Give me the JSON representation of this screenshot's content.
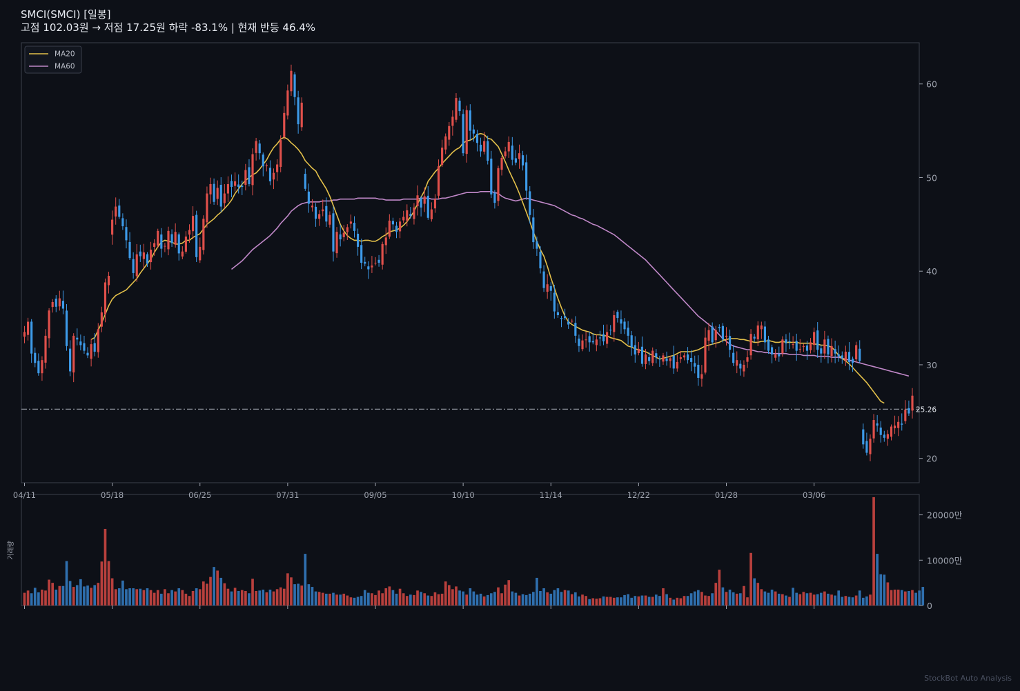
{
  "header": {
    "title": "SMCI(SMCI)  [일봉]",
    "subtitle": "고점 102.03원 → 저점 17.25원  하락 -83.1%  |  현재 반등 46.4%"
  },
  "footer": {
    "watermark": "StockBot Auto Analysis"
  },
  "colors": {
    "background": "#0d1017",
    "up": "#e0504b",
    "down": "#3d9ae8",
    "volume_up": "#b8403d",
    "volume_down": "#2f6fae",
    "ma20": "#e3c04a",
    "ma60": "#c088c8",
    "frame": "#3a3f4b",
    "reference_line": "#9a9ea8",
    "tick_text": "#9ea3ae"
  },
  "chart_data": [
    {
      "type": "candlestick",
      "panel": "price",
      "legend_position": "top-left",
      "legend": [
        "MA20",
        "MA60"
      ],
      "y_ticks": [
        20,
        30,
        40,
        50,
        60
      ],
      "ylim": [
        17.4,
        64.4
      ],
      "x_ticks": [
        "04/11",
        "05/18",
        "06/25",
        "07/31",
        "09/05",
        "10/10",
        "11/14",
        "12/22",
        "01/28",
        "03/06"
      ],
      "x_tick_index": [
        0,
        25,
        50,
        75,
        100,
        125,
        150,
        175,
        200,
        225
      ],
      "reference_line": {
        "value": 25.26,
        "label": "25.26"
      },
      "closes": [
        33.5,
        34.6,
        31.2,
        30.2,
        29.1,
        30.5,
        33.1,
        35.8,
        36.7,
        36.2,
        37.1,
        36.0,
        32.0,
        29.3,
        33.1,
        32.7,
        32.1,
        31.5,
        31.0,
        32.2,
        31.4,
        33.8,
        35.6,
        38.8,
        39.5,
        45.5,
        46.9,
        45.8,
        44.8,
        43.3,
        41.4,
        39.8,
        41.8,
        41.6,
        42.0,
        40.8,
        42.3,
        43.0,
        44.3,
        42.4,
        42.7,
        44.3,
        43.0,
        44.2,
        41.9,
        42.1,
        43.7,
        44.4,
        45.9,
        41.5,
        42.6,
        45.6,
        48.3,
        49.3,
        47.4,
        48.9,
        46.9,
        48.3,
        49.3,
        49.0,
        49.6,
        49.0,
        49.0,
        50.8,
        49.3,
        52.5,
        53.9,
        52.6,
        51.2,
        51.3,
        49.6,
        50.5,
        51.4,
        54.0,
        56.9,
        59.3,
        61.4,
        58.6,
        55.7,
        58.0,
        48.8,
        47.2,
        47.0,
        45.6,
        46.1,
        46.6,
        45.3,
        46.0,
        42.1,
        44.2,
        43.4,
        44.1,
        44.7,
        45.3,
        44.3,
        42.6,
        40.9,
        40.8,
        40.2,
        40.6,
        40.9,
        40.9,
        42.9,
        43.6,
        45.4,
        45.0,
        44.2,
        45.3,
        45.8,
        46.5,
        45.9,
        46.8,
        48.1,
        46.8,
        48.0,
        45.7,
        46.6,
        47.7,
        51.2,
        53.2,
        54.4,
        55.5,
        56.5,
        58.5,
        57.1,
        52.6,
        57.2,
        55.0,
        54.7,
        53.7,
        52.8,
        53.9,
        51.8,
        48.2,
        47.3,
        51.0,
        52.1,
        52.8,
        53.8,
        51.9,
        51.6,
        52.6,
        51.3,
        48.6,
        46.0,
        43.1,
        42.4,
        40.3,
        38.2,
        38.6,
        37.9,
        35.7,
        35.3,
        34.9,
        35.0,
        34.3,
        34.7,
        33.1,
        32.0,
        32.6,
        32.7,
        32.4,
        32.4,
        32.7,
        32.9,
        32.5,
        33.5,
        33.7,
        35.3,
        35.0,
        34.4,
        33.8,
        33.1,
        31.9,
        31.1,
        31.7,
        30.1,
        31.1,
        30.4,
        31.5,
        30.8,
        30.6,
        31.0,
        30.4,
        30.7,
        29.6,
        30.3,
        30.8,
        31.0,
        30.5,
        30.3,
        29.8,
        28.6,
        29.0,
        32.9,
        33.7,
        32.4,
        33.7,
        33.9,
        32.7,
        33.1,
        31.6,
        30.2,
        30.5,
        29.6,
        30.0,
        30.8,
        33.3,
        32.8,
        34.2,
        34.2,
        32.4,
        31.5,
        31.1,
        31.1,
        30.9,
        32.7,
        32.3,
        32.5,
        32.2,
        31.5,
        31.7,
        32.0,
        31.5,
        32.4,
        33.5,
        31.6,
        31.2,
        32.7,
        31.1,
        32.0,
        31.2,
        30.9,
        30.7,
        31.4,
        30.3,
        30.2,
        32.1,
        30.4,
        21.5,
        20.6,
        22.1,
        24.1,
        23.5,
        22.5,
        22.2,
        22.6,
        23.4,
        23.5,
        23.9,
        23.6,
        25.2,
        24.8,
        26.7
      ],
      "ma20": [
        null,
        null,
        null,
        null,
        null,
        null,
        null,
        null,
        null,
        null,
        null,
        null,
        null,
        null,
        null,
        null,
        null,
        null,
        null,
        32.7,
        32.9,
        33.7,
        34.5,
        35.4,
        36.3,
        37.0,
        37.4,
        37.6,
        37.8,
        38.0,
        38.4,
        38.8,
        39.2,
        39.8,
        40.3,
        40.8,
        41.3,
        42.0,
        42.6,
        43.1,
        43.3,
        43.2,
        43.1,
        42.9,
        42.9,
        43.0,
        43.3,
        43.3,
        43.6,
        43.8,
        44.0,
        44.5,
        45.0,
        45.3,
        45.6,
        46.0,
        46.3,
        46.7,
        47.1,
        47.6,
        48.3,
        48.8,
        49.3,
        49.7,
        50.0,
        50.3,
        50.5,
        50.9,
        51.4,
        51.9,
        52.6,
        53.2,
        53.6,
        54.1,
        54.3,
        54.1,
        53.7,
        53.4,
        53.0,
        52.5,
        51.8,
        51.4,
        51.0,
        50.7,
        50.0,
        49.4,
        48.8,
        48.0,
        47.0,
        46.0,
        45.0,
        44.3,
        43.8,
        43.5,
        43.3,
        43.3,
        43.2,
        43.3,
        43.3,
        43.2,
        43.2,
        43.4,
        43.7,
        43.9,
        44.2,
        44.3,
        44.4,
        44.6,
        44.9,
        45.3,
        45.8,
        46.4,
        47.2,
        47.9,
        48.6,
        49.6,
        50.1,
        50.6,
        51.0,
        51.5,
        51.9,
        52.3,
        52.7,
        53.0,
        53.2,
        53.7,
        53.9,
        54.0,
        54.2,
        54.6,
        54.7,
        54.6,
        54.2,
        54.1,
        53.7,
        53.3,
        52.5,
        51.7,
        50.8,
        50.0,
        49.2,
        48.3,
        47.3,
        46.3,
        45.3,
        44.2,
        43.2,
        42.3,
        41.6,
        40.5,
        39.3,
        38.2,
        37.1,
        36.1,
        35.2,
        34.6,
        34.3,
        34.1,
        33.9,
        33.7,
        33.6,
        33.5,
        33.3,
        33.2,
        33.2,
        33.1,
        33.1,
        32.9,
        32.8,
        32.7,
        32.6,
        32.3,
        32.0,
        31.9,
        31.7,
        31.6,
        31.5,
        31.4,
        31.2,
        31.0,
        30.8,
        30.6,
        30.7,
        30.8,
        30.9,
        31.0,
        31.2,
        31.4,
        31.4,
        31.4,
        31.4,
        31.5,
        31.6,
        31.8,
        32.0,
        32.1,
        32.2,
        32.3,
        32.4,
        32.6,
        32.7,
        32.8,
        32.8,
        32.8,
        32.7,
        32.7,
        32.6,
        32.5,
        32.4,
        32.4,
        32.5,
        32.5,
        32.6,
        32.5,
        32.4,
        32.4,
        32.5,
        32.4,
        32.4,
        32.4,
        32.4,
        32.3,
        32.3,
        32.3,
        32.3,
        32.2,
        32.2,
        32.1,
        32.1,
        32.0,
        31.9,
        31.5,
        31.0,
        30.7,
        30.4,
        30.1,
        29.7,
        29.3,
        28.9,
        28.5,
        28.1,
        27.6,
        27.1,
        26.6,
        26.1,
        25.9
      ],
      "ma60": [
        null,
        null,
        null,
        null,
        null,
        null,
        null,
        null,
        null,
        null,
        null,
        null,
        null,
        null,
        null,
        null,
        null,
        null,
        null,
        null,
        null,
        null,
        null,
        null,
        null,
        null,
        null,
        null,
        null,
        null,
        null,
        null,
        null,
        null,
        null,
        null,
        null,
        null,
        null,
        null,
        null,
        null,
        null,
        null,
        null,
        null,
        null,
        null,
        null,
        null,
        null,
        null,
        null,
        null,
        null,
        null,
        null,
        null,
        null,
        40.2,
        40.5,
        40.8,
        41.1,
        41.5,
        41.9,
        42.3,
        42.6,
        42.9,
        43.2,
        43.5,
        43.8,
        44.2,
        44.6,
        45.1,
        45.5,
        45.9,
        46.4,
        46.7,
        47.0,
        47.2,
        47.3,
        47.4,
        47.4,
        47.4,
        47.4,
        47.5,
        47.5,
        47.5,
        47.6,
        47.6,
        47.7,
        47.7,
        47.7,
        47.7,
        47.7,
        47.8,
        47.8,
        47.8,
        47.8,
        47.8,
        47.8,
        47.7,
        47.7,
        47.6,
        47.6,
        47.6,
        47.6,
        47.6,
        47.7,
        47.7,
        47.7,
        47.7,
        47.7,
        47.8,
        47.8,
        47.8,
        47.7,
        47.7,
        47.7,
        47.8,
        47.8,
        47.9,
        48.0,
        48.1,
        48.2,
        48.3,
        48.4,
        48.4,
        48.4,
        48.4,
        48.5,
        48.5,
        48.5,
        48.5,
        48.4,
        48.3,
        48.0,
        47.8,
        47.7,
        47.6,
        47.5,
        47.6,
        47.7,
        47.8,
        47.7,
        47.6,
        47.5,
        47.4,
        47.3,
        47.2,
        47.1,
        47.0,
        46.8,
        46.6,
        46.4,
        46.2,
        46.0,
        45.9,
        45.7,
        45.6,
        45.4,
        45.2,
        45.0,
        44.9,
        44.7,
        44.5,
        44.3,
        44.1,
        43.9,
        43.6,
        43.3,
        43.0,
        42.7,
        42.4,
        42.1,
        41.8,
        41.5,
        41.2,
        40.8,
        40.4,
        40.0,
        39.6,
        39.2,
        38.8,
        38.4,
        38.0,
        37.6,
        37.2,
        36.8,
        36.4,
        36.0,
        35.6,
        35.2,
        34.9,
        34.6,
        34.3,
        34.0,
        33.6,
        33.2,
        32.8,
        32.5,
        32.2,
        32.0,
        31.9,
        31.8,
        31.7,
        31.6,
        31.6,
        31.5,
        31.4,
        31.4,
        31.3,
        31.3,
        31.2,
        31.2,
        31.2,
        31.2,
        31.2,
        31.1,
        31.1,
        31.1,
        31.1,
        31.0,
        31.0,
        31.0,
        31.0,
        30.9,
        30.9,
        30.9,
        30.9,
        30.8,
        30.8,
        30.8,
        30.7,
        30.6,
        30.5,
        30.4,
        30.3,
        30.2,
        30.1,
        30.0,
        29.9,
        29.8,
        29.7,
        29.6,
        29.5,
        29.4,
        29.3,
        29.2,
        29.1,
        29.0,
        28.9,
        28.8
      ]
    },
    {
      "type": "bar",
      "panel": "volume",
      "ylabel": "거래량",
      "y_ticks": [
        0,
        10000,
        20000
      ],
      "y_tick_labels": [
        "0",
        "10000만",
        "20000만"
      ],
      "ylim": [
        0,
        24500
      ],
      "unit": "만",
      "volumes": [
        2800,
        3300,
        2700,
        3900,
        2900,
        3500,
        3300,
        5700,
        5000,
        3500,
        4300,
        4300,
        9800,
        5400,
        4100,
        4500,
        5800,
        4200,
        4400,
        3900,
        4500,
        5000,
        9700,
        16900,
        9800,
        6000,
        3600,
        3800,
        5500,
        3600,
        3800,
        3800,
        3600,
        3700,
        3400,
        3800,
        3400,
        2800,
        3400,
        2600,
        3600,
        2700,
        3400,
        3100,
        3800,
        3400,
        2600,
        2100,
        3200,
        3800,
        3600,
        5300,
        4800,
        6300,
        8500,
        7700,
        6100,
        4900,
        3700,
        3100,
        3900,
        3200,
        3400,
        3200,
        2700,
        5900,
        3200,
        3300,
        3500,
        2900,
        3500,
        3100,
        3600,
        4000,
        3700,
        7100,
        6200,
        4700,
        4800,
        4400,
        11400,
        4700,
        4100,
        3100,
        3000,
        2800,
        2600,
        2600,
        2800,
        2400,
        2400,
        2600,
        2200,
        1800,
        1700,
        1900,
        2100,
        3400,
        2800,
        2700,
        2300,
        3300,
        2700,
        3800,
        4200,
        3400,
        2600,
        3700,
        2700,
        2100,
        2400,
        2300,
        3300,
        3000,
        2700,
        2200,
        2100,
        2900,
        2500,
        2600,
        5300,
        4500,
        3600,
        4200,
        3300,
        3100,
        2400,
        3800,
        3100,
        2400,
        2600,
        2000,
        2300,
        2700,
        3000,
        4000,
        2700,
        4600,
        5600,
        3100,
        2800,
        2200,
        2500,
        2300,
        2600,
        3000,
        6100,
        3200,
        3800,
        2900,
        2600,
        3400,
        3800,
        3000,
        3400,
        3300,
        2500,
        2900,
        2000,
        2400,
        2100,
        1400,
        1600,
        1500,
        1600,
        2000,
        1900,
        1900,
        1700,
        1800,
        1800,
        2300,
        2500,
        1700,
        2100,
        2000,
        2200,
        2200,
        1900,
        1900,
        2400,
        2100,
        3800,
        2500,
        1700,
        1300,
        1700,
        1600,
        2100,
        2100,
        2700,
        3100,
        3400,
        3000,
        2200,
        2100,
        2700,
        5000,
        7900,
        4000,
        3000,
        3500,
        2900,
        2600,
        2700,
        4300,
        1800,
        11600,
        6000,
        5000,
        3600,
        3100,
        2800,
        3500,
        3100,
        2600,
        2500,
        2200,
        1900,
        3900,
        2800,
        2500,
        3000,
        2700,
        2800,
        2400,
        2500,
        2800,
        3100,
        2600,
        2400,
        2200,
        3300,
        1900,
        2100,
        1900,
        1800,
        2200,
        3300,
        1700,
        2000,
        2400,
        23900,
        11400,
        6900,
        6800,
        5100,
        3400,
        3500,
        3500,
        3400,
        3100,
        3200,
        3400,
        2800,
        3300,
        4100
      ]
    }
  ]
}
